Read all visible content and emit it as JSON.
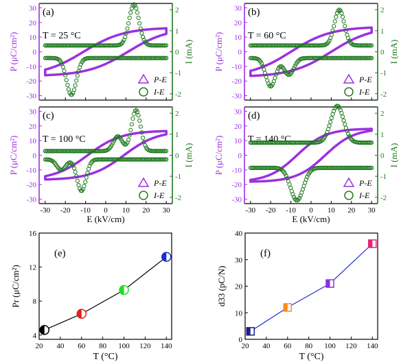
{
  "colors": {
    "purple": "#9b30e0",
    "green": "#1f7a1f",
    "axis": "#000000",
    "line_e": "#000000",
    "line_f": "#1f2fd0"
  },
  "loop_panels": [
    {
      "label": "(a)",
      "temperature": "T = 25 °C",
      "pe": {
        "Ec": 11.0,
        "Pmax": 16.0,
        "k": 0.05
      },
      "ie": {
        "peaks": [
          {
            "e": 14.0,
            "i": 1.95
          },
          {
            "e": -17.0,
            "i": -1.75
          }
        ],
        "width": 3.5,
        "base": 0.3
      }
    },
    {
      "label": "(b)",
      "temperature": "T = 60 °C",
      "pe": {
        "Ec": 10.0,
        "Pmax": 16.5,
        "k": 0.05
      },
      "ie": {
        "peaks": [
          {
            "e": 14.0,
            "i": 1.7
          },
          {
            "e": -20.0,
            "i": -1.35
          },
          {
            "e": -11.0,
            "i": -0.8
          }
        ],
        "width": 3.5,
        "base": 0.3
      }
    },
    {
      "label": "(c)",
      "temperature": "T = 100 °C",
      "pe": {
        "Ec": 9.0,
        "Pmax": 16.5,
        "k": 0.06
      },
      "ie": {
        "peaks": [
          {
            "e": 15.0,
            "i": 1.95
          },
          {
            "e": 6.0,
            "i": 0.7
          },
          {
            "e": -12.0,
            "i": -1.5
          },
          {
            "e": -22.0,
            "i": -0.5
          }
        ],
        "width": 3.2,
        "base": 0.2
      }
    },
    {
      "label": "(d)",
      "temperature": "T = 140 °C",
      "pe": {
        "Ec": 7.0,
        "Pmax": 18.0,
        "k": 0.07
      },
      "ie": {
        "peaks": [
          {
            "e": 13.0,
            "i": 1.75
          },
          {
            "e": -7.0,
            "i": -1.55
          }
        ],
        "width": 4.5,
        "base": 0.6
      }
    }
  ],
  "loop_axes": {
    "x_label": "E (kV/cm)",
    "x_ticks": [
      "-30",
      "-20",
      "-10",
      "0",
      "10",
      "20",
      "30"
    ],
    "left_label": "P (μC/cm²)",
    "left_ticks": [
      "-30",
      "-20",
      "-10",
      "0",
      "10",
      "20",
      "30"
    ],
    "right_label": "I (mA)",
    "right_ticks": [
      "-2",
      "-1",
      "0",
      "1",
      "2"
    ],
    "legend": [
      "P-E",
      "I-E"
    ]
  },
  "chart_data": [
    {
      "type": "line",
      "label": "(e)",
      "xlabel": "T (°C)",
      "ylabel": "Pr (μC/cm²)",
      "xlim": [
        20,
        145
      ],
      "ylim": [
        3.5,
        16
      ],
      "x_ticks": [
        "20",
        "40",
        "60",
        "80",
        "100",
        "120",
        "140"
      ],
      "y_ticks": [
        "4",
        "8",
        "12",
        "16"
      ],
      "x": [
        25,
        60,
        100,
        140
      ],
      "y": [
        4.6,
        6.5,
        9.3,
        13.2
      ],
      "marker_colors": [
        "#000000",
        "#e0201c",
        "#22dd22",
        "#1a2fcf"
      ]
    },
    {
      "type": "line",
      "label": "(f)",
      "xlabel": "T (°C)",
      "ylabel": "d33 (pC/N)",
      "xlim": [
        20,
        145
      ],
      "ylim": [
        0,
        40
      ],
      "x_ticks": [
        "20",
        "40",
        "60",
        "80",
        "100",
        "120",
        "140"
      ],
      "y_ticks": [
        "0",
        "10",
        "20",
        "30",
        "40"
      ],
      "x": [
        25,
        60,
        100,
        140
      ],
      "y": [
        3,
        12,
        21,
        36
      ],
      "marker_colors": [
        "#1a1f8f",
        "#ff8a1c",
        "#8a30e0",
        "#ee1f6f"
      ]
    },
    {
      "type": "line",
      "label": "P-E loops (a)-(d)",
      "xlabel": "E (kV/cm)",
      "ylabel": "P (μC/cm²)",
      "xlim": [
        -30,
        30
      ],
      "ylim": [
        -30,
        30
      ],
      "series_ref": "loop_panels.pe"
    },
    {
      "type": "line",
      "label": "I-E loops (a)-(d)",
      "xlabel": "E (kV/cm)",
      "ylabel": "I (mA)",
      "xlim": [
        -30,
        30
      ],
      "ylim": [
        -2.3,
        2.3
      ],
      "series_ref": "loop_panels.ie"
    }
  ]
}
